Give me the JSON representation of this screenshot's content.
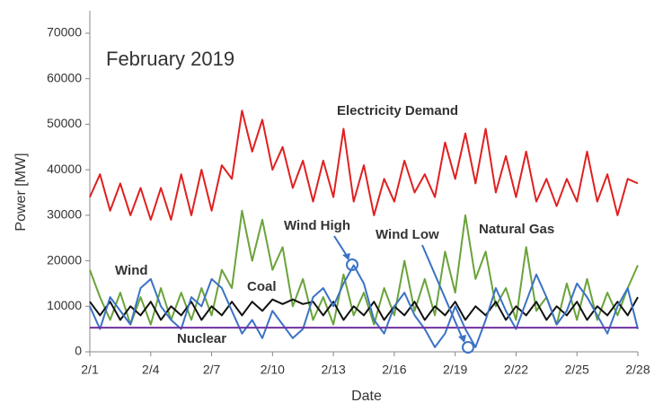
{
  "chart_data": {
    "type": "line",
    "xlabel": "Date",
    "ylabel": "Power [MW]",
    "annotations": [
      {
        "text": "February 2019",
        "color": "#222"
      },
      {
        "text": "Wind High",
        "color": "#3b72c4"
      },
      {
        "text": "Wind Low",
        "color": "#3b72c4"
      }
    ],
    "x": [
      1,
      1.5,
      2,
      2.5,
      3,
      3.5,
      4,
      4.5,
      5,
      5.5,
      6,
      6.5,
      7,
      7.5,
      8,
      8.5,
      9,
      9.5,
      10,
      10.5,
      11,
      11.5,
      12,
      12.5,
      13,
      13.5,
      14,
      14.5,
      15,
      15.5,
      16,
      16.5,
      17,
      17.5,
      18,
      18.5,
      19,
      19.5,
      20,
      20.5,
      21,
      21.5,
      22,
      22.5,
      23,
      23.5,
      24,
      24.5,
      25,
      25.5,
      26,
      26.5,
      27,
      27.5,
      28
    ],
    "xlim": [
      1,
      28
    ],
    "xticks": [
      {
        "value": 1,
        "label": "2/1"
      },
      {
        "value": 4,
        "label": "2/4"
      },
      {
        "value": 7,
        "label": "2/7"
      },
      {
        "value": 10,
        "label": "2/10"
      },
      {
        "value": 13,
        "label": "2/13"
      },
      {
        "value": 16,
        "label": "2/16"
      },
      {
        "value": 19,
        "label": "2/19"
      },
      {
        "value": 22,
        "label": "2/22"
      },
      {
        "value": 25,
        "label": "2/25"
      },
      {
        "value": 28,
        "label": "2/28"
      }
    ],
    "ylim": [
      0,
      70000
    ],
    "yticks": [
      0,
      10000,
      20000,
      30000,
      40000,
      50000,
      60000,
      70000
    ],
    "grid": false,
    "series": [
      {
        "name": "Electricity Demand",
        "color": "#e02020",
        "values": [
          34000,
          39000,
          31000,
          37000,
          30000,
          36000,
          29000,
          36000,
          29000,
          39000,
          30000,
          40000,
          31000,
          41000,
          38000,
          53000,
          44000,
          51000,
          40000,
          45000,
          36000,
          42000,
          33000,
          42000,
          34000,
          49000,
          33000,
          41000,
          30000,
          38000,
          33000,
          42000,
          35000,
          39000,
          34000,
          46000,
          38000,
          48000,
          37000,
          49000,
          35000,
          43000,
          34000,
          44000,
          33000,
          38000,
          32000,
          38000,
          33000,
          44000,
          33000,
          39000,
          30000,
          38000,
          37000
        ]
      },
      {
        "name": "Natural Gas",
        "color": "#6aa33a",
        "values": [
          18000,
          12000,
          7000,
          13000,
          6000,
          12000,
          6000,
          14000,
          7000,
          13000,
          7000,
          14000,
          8000,
          18000,
          14000,
          31000,
          20000,
          29000,
          18000,
          23000,
          10000,
          16000,
          7000,
          12000,
          6000,
          17000,
          8000,
          13000,
          6000,
          14000,
          8000,
          20000,
          9000,
          16000,
          8000,
          22000,
          13000,
          30000,
          16000,
          22000,
          10000,
          14000,
          7000,
          23000,
          9000,
          12000,
          6000,
          15000,
          7000,
          16000,
          7000,
          13000,
          8000,
          14000,
          19000
        ]
      },
      {
        "name": "Coal",
        "color": "#111111",
        "values": [
          11000,
          8000,
          11000,
          7000,
          10000,
          8000,
          11000,
          7000,
          10000,
          8000,
          11000,
          7000,
          10000,
          8000,
          11000,
          8000,
          11000,
          9000,
          11500,
          10500,
          11500,
          10500,
          11000,
          8000,
          11000,
          7000,
          10000,
          8000,
          11000,
          7000,
          10000,
          8000,
          11000,
          7000,
          10000,
          8000,
          11000,
          7000,
          10000,
          8000,
          11000,
          7000,
          10000,
          8000,
          11000,
          7000,
          10000,
          8000,
          11000,
          7000,
          10000,
          8000,
          11000,
          8000,
          12000
        ]
      },
      {
        "name": "Wind",
        "color": "#3b72c4",
        "values": [
          10000,
          5000,
          12000,
          9000,
          6000,
          14000,
          16000,
          10000,
          7000,
          5000,
          12000,
          10000,
          16000,
          14000,
          9000,
          4000,
          7000,
          3000,
          9000,
          6000,
          3000,
          5000,
          12000,
          14000,
          10000,
          15000,
          19000,
          15000,
          7000,
          4000,
          10000,
          13000,
          8000,
          5000,
          1000,
          4000,
          10000,
          5000,
          1000,
          7000,
          14000,
          9000,
          5000,
          11000,
          17000,
          12000,
          6000,
          9000,
          15000,
          12000,
          8000,
          4000,
          10000,
          14000,
          5000
        ]
      },
      {
        "name": "Nuclear",
        "color": "#7030a0",
        "x": [
          1,
          28
        ],
        "values": [
          5300,
          5300
        ]
      }
    ]
  }
}
